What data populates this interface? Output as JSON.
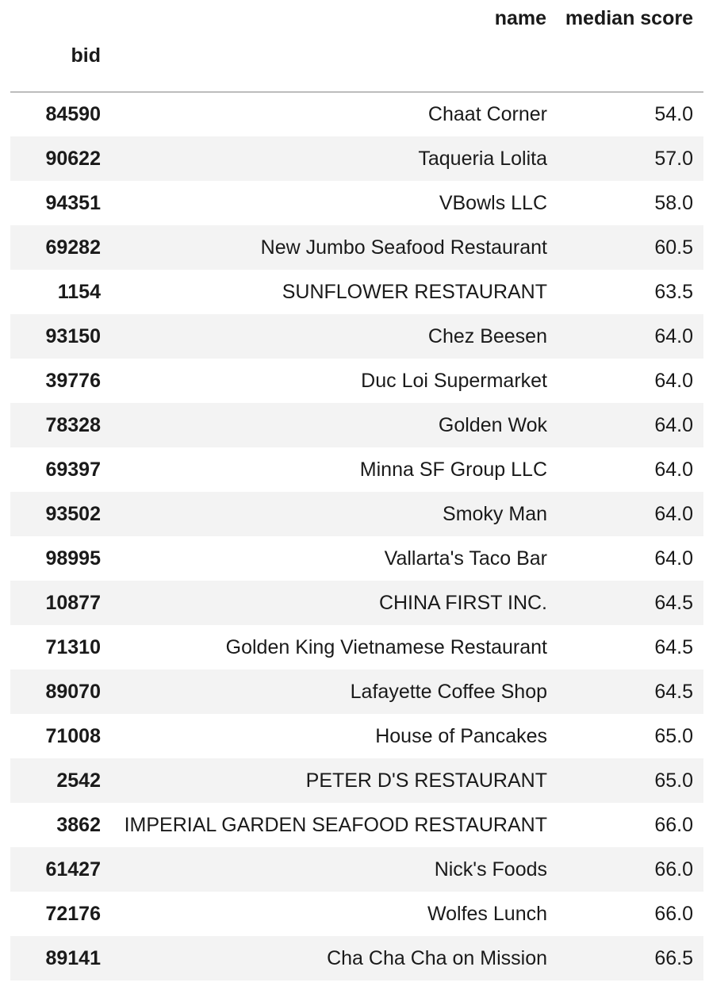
{
  "columns": {
    "name": "name",
    "median_score": "median score"
  },
  "index_name": "bid",
  "rows": [
    {
      "bid": "84590",
      "name": "Chaat Corner",
      "median_score": "54.0"
    },
    {
      "bid": "90622",
      "name": "Taqueria Lolita",
      "median_score": "57.0"
    },
    {
      "bid": "94351",
      "name": "VBowls LLC",
      "median_score": "58.0"
    },
    {
      "bid": "69282",
      "name": "New Jumbo Seafood Restaurant",
      "median_score": "60.5"
    },
    {
      "bid": "1154",
      "name": "SUNFLOWER RESTAURANT",
      "median_score": "63.5"
    },
    {
      "bid": "93150",
      "name": "Chez Beesen",
      "median_score": "64.0"
    },
    {
      "bid": "39776",
      "name": "Duc Loi Supermarket",
      "median_score": "64.0"
    },
    {
      "bid": "78328",
      "name": "Golden Wok",
      "median_score": "64.0"
    },
    {
      "bid": "69397",
      "name": "Minna SF Group LLC",
      "median_score": "64.0"
    },
    {
      "bid": "93502",
      "name": "Smoky Man",
      "median_score": "64.0"
    },
    {
      "bid": "98995",
      "name": "Vallarta's Taco Bar",
      "median_score": "64.0"
    },
    {
      "bid": "10877",
      "name": "CHINA FIRST INC.",
      "median_score": "64.5"
    },
    {
      "bid": "71310",
      "name": "Golden King Vietnamese Restaurant",
      "median_score": "64.5"
    },
    {
      "bid": "89070",
      "name": "Lafayette Coffee Shop",
      "median_score": "64.5"
    },
    {
      "bid": "71008",
      "name": "House of Pancakes",
      "median_score": "65.0"
    },
    {
      "bid": "2542",
      "name": "PETER D'S RESTAURANT",
      "median_score": "65.0"
    },
    {
      "bid": "3862",
      "name": "IMPERIAL GARDEN SEAFOOD RESTAURANT",
      "median_score": "66.0"
    },
    {
      "bid": "61427",
      "name": "Nick's Foods",
      "median_score": "66.0"
    },
    {
      "bid": "72176",
      "name": "Wolfes Lunch",
      "median_score": "66.0"
    },
    {
      "bid": "89141",
      "name": "Cha Cha Cha on Mission",
      "median_score": "66.5"
    }
  ]
}
